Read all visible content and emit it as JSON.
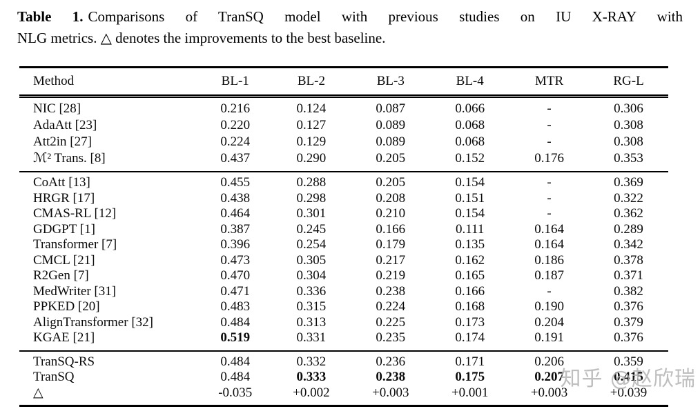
{
  "caption": {
    "label": "Table 1.",
    "line1_rest": "Comparisons of TranSQ model with previous studies on IU X-RAY with",
    "line2": "NLG metrics. △ denotes the improvements to the best baseline."
  },
  "table": {
    "columns": [
      "Method",
      "BL-1",
      "BL-2",
      "BL-3",
      "BL-4",
      "MTR",
      "RG-L"
    ],
    "groups": [
      {
        "rows": [
          {
            "method": "NIC [28]",
            "values": [
              "0.216",
              "0.124",
              "0.087",
              "0.066",
              "-",
              "0.306"
            ],
            "bold": []
          },
          {
            "method": "AdaAtt [23]",
            "values": [
              "0.220",
              "0.127",
              "0.089",
              "0.068",
              "-",
              "0.308"
            ],
            "bold": []
          },
          {
            "method": "Att2in [27]",
            "values": [
              "0.224",
              "0.129",
              "0.089",
              "0.068",
              "-",
              "0.308"
            ],
            "bold": []
          },
          {
            "method": "ℳ² Trans. [8]",
            "values": [
              "0.437",
              "0.290",
              "0.205",
              "0.152",
              "0.176",
              "0.353"
            ],
            "bold": []
          }
        ]
      },
      {
        "rows": [
          {
            "method": "CoAtt [13]",
            "values": [
              "0.455",
              "0.288",
              "0.205",
              "0.154",
              "-",
              "0.369"
            ],
            "bold": []
          },
          {
            "method": "HRGR [17]",
            "values": [
              "0.438",
              "0.298",
              "0.208",
              "0.151",
              "-",
              "0.322"
            ],
            "bold": []
          },
          {
            "method": "CMAS-RL [12]",
            "values": [
              "0.464",
              "0.301",
              "0.210",
              "0.154",
              "-",
              "0.362"
            ],
            "bold": []
          },
          {
            "method": "GDGPT [1]",
            "values": [
              "0.387",
              "0.245",
              "0.166",
              "0.111",
              "0.164",
              "0.289"
            ],
            "bold": []
          },
          {
            "method": "Transformer [7]",
            "values": [
              "0.396",
              "0.254",
              "0.179",
              "0.135",
              "0.164",
              "0.342"
            ],
            "bold": []
          },
          {
            "method": "CMCL [21]",
            "values": [
              "0.473",
              "0.305",
              "0.217",
              "0.162",
              "0.186",
              "0.378"
            ],
            "bold": []
          },
          {
            "method": "R2Gen [7]",
            "values": [
              "0.470",
              "0.304",
              "0.219",
              "0.165",
              "0.187",
              "0.371"
            ],
            "bold": []
          },
          {
            "method": "MedWriter [31]",
            "values": [
              "0.471",
              "0.336",
              "0.238",
              "0.166",
              "-",
              "0.382"
            ],
            "bold": []
          },
          {
            "method": "PPKED [20]",
            "values": [
              "0.483",
              "0.315",
              "0.224",
              "0.168",
              "0.190",
              "0.376"
            ],
            "bold": []
          },
          {
            "method": "AlignTransformer [32]",
            "values": [
              "0.484",
              "0.313",
              "0.225",
              "0.173",
              "0.204",
              "0.379"
            ],
            "bold": []
          },
          {
            "method": "KGAE [21]",
            "values": [
              "0.519",
              "0.331",
              "0.235",
              "0.174",
              "0.191",
              "0.376"
            ],
            "bold": [
              0
            ]
          }
        ]
      },
      {
        "rows": [
          {
            "method": "TranSQ-RS",
            "values": [
              "0.484",
              "0.332",
              "0.236",
              "0.171",
              "0.206",
              "0.359"
            ],
            "bold": []
          },
          {
            "method": "TranSQ",
            "values": [
              "0.484",
              "0.333",
              "0.238",
              "0.175",
              "0.207",
              "0.415"
            ],
            "bold": [
              1,
              2,
              3,
              4,
              5
            ]
          },
          {
            "method": "△",
            "values": [
              "-0.035",
              "+0.002",
              "+0.003",
              "+0.001",
              "+0.003",
              "+0.039"
            ],
            "bold": []
          }
        ]
      }
    ]
  },
  "watermark": {
    "text": "知乎 @赵欣瑞",
    "color": "#aeaeae"
  }
}
